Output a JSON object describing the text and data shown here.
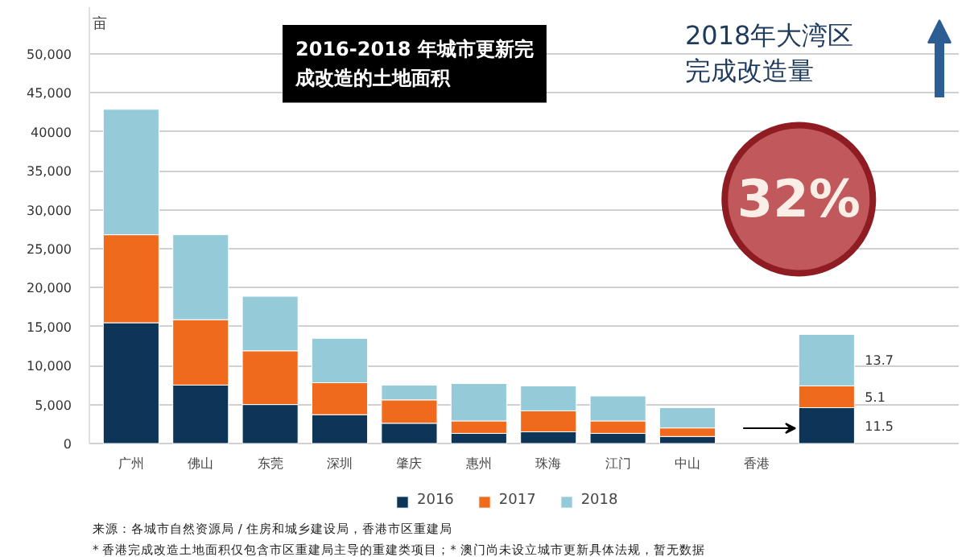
{
  "chart_data": {
    "type": "bar",
    "stacked": true,
    "title": "2016-2018 年城市更新完成改造的土地面积",
    "subtitle": "2018年大湾区完成改造量",
    "ylabel": "亩",
    "categories": [
      "广州",
      "佛山",
      "东莞",
      "深圳",
      "肇庆",
      "惠州",
      "珠海",
      "江门",
      "中山",
      "香港",
      null
    ],
    "series": [
      {
        "name": "2016",
        "color": "#0d3558",
        "values": [
          15500,
          7500,
          5000,
          3700,
          2600,
          1300,
          1500,
          1300,
          900,
          null,
          4600
        ]
      },
      {
        "name": "2017",
        "color": "#f06a1e",
        "values": [
          11300,
          8400,
          6900,
          4100,
          3000,
          1600,
          2700,
          1600,
          1100,
          null,
          2800
        ]
      },
      {
        "name": "2018",
        "color": "#95cbd8",
        "values": [
          16100,
          10900,
          7000,
          5700,
          1900,
          4800,
          3200,
          3200,
          2600,
          null,
          6600
        ]
      }
    ],
    "ylim": [
      0,
      56000
    ],
    "yticks": [
      0,
      {
        "value": 5000,
        "label": "5,000"
      },
      {
        "value": 10000,
        "label": "10,000"
      },
      {
        "value": 15000,
        "label": "15,000"
      },
      {
        "value": 20000,
        "label": "20,000"
      },
      {
        "value": 25000,
        "label": "25,000"
      },
      {
        "value": 30000,
        "label": "30,000"
      },
      {
        "value": 35000,
        "label": "35,000"
      },
      40000,
      {
        "value": 45000,
        "label": "45,000"
      },
      {
        "value": 50000,
        "label": "50,000"
      }
    ],
    "grid": "y",
    "legend": "bottom",
    "annotations": [
      "32%",
      "来源：各城市自然资源局 / 住房和城乡建设局，香港市区重建局",
      "* 香港完成改造土地面积仅包含市区重建局主导的重建类项目；* 澳门尚未设立城市更新具体法规，暂无数据",
      "11.5",
      "5.1",
      "13.7"
    ]
  }
}
